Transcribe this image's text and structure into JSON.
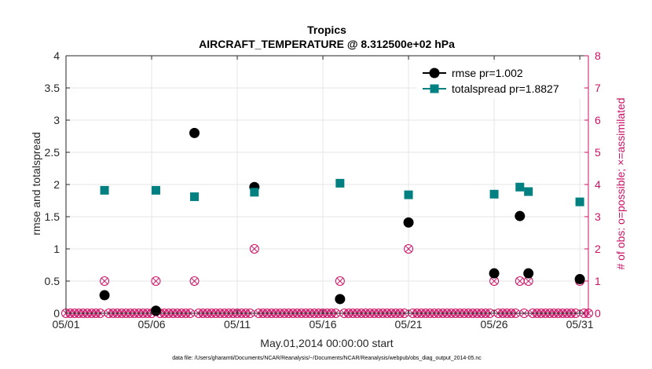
{
  "chart_data": {
    "type": "scatter",
    "title": "Tropics",
    "subtitle": "AIRCRAFT_TEMPERATURE @ 8.312500e+02 hPa",
    "xlabel": "May.01,2014 00:00:00 start",
    "ylabel": "rmse and totalspread",
    "ylabel_right": "# of obs: o=possible; ×=assimilated",
    "footer": "data file: /Users/gharamti/Documents/NCAR/Reanalysis/~/Documents/NCAR/Reanalysis/webpub/obs_diag_output_2014-05.nc",
    "xlim": [
      1,
      31.5
    ],
    "ylim": [
      0,
      4
    ],
    "ylim_right": [
      0,
      8
    ],
    "x_ticks": [
      1,
      6,
      11,
      16,
      21,
      26,
      31
    ],
    "x_tick_labels": [
      "05/01",
      "05/06",
      "05/11",
      "05/16",
      "05/21",
      "05/26",
      "05/31"
    ],
    "y_ticks": [
      0,
      0.5,
      1,
      1.5,
      2,
      2.5,
      3,
      3.5,
      4
    ],
    "y_tick_labels": [
      "0",
      "0.5",
      "1",
      "1.5",
      "2",
      "2.5",
      "3",
      "3.5",
      "4"
    ],
    "y_ticks_right": [
      0,
      1,
      2,
      3,
      4,
      5,
      6,
      7,
      8
    ],
    "y_tick_labels_right": [
      "0",
      "1",
      "2",
      "3",
      "4",
      "5",
      "6",
      "7",
      "8"
    ],
    "grid": true,
    "legend_position": "top-right",
    "colors": {
      "rmse": "#000000",
      "totalspread": "#008080",
      "obs": "#cc1166",
      "grid": "#e6e6e6",
      "axis": "#262626"
    },
    "series": [
      {
        "name": "rmse pr=1.002",
        "key": "rmse",
        "axis": "left",
        "x": [
          3.25,
          6.25,
          8.5,
          12.0,
          17.0,
          21.0,
          26.0,
          27.5,
          28.0,
          31.0
        ],
        "values": [
          0.28,
          0.04,
          2.8,
          1.96,
          0.22,
          1.41,
          0.62,
          1.51,
          0.62,
          0.53
        ]
      },
      {
        "name": "totalspread pr=1.8827",
        "key": "totalspread",
        "axis": "left",
        "x": [
          3.25,
          6.25,
          8.5,
          12.0,
          17.0,
          21.0,
          26.0,
          27.5,
          28.0,
          31.0
        ],
        "values": [
          1.91,
          1.91,
          1.81,
          1.88,
          2.02,
          1.84,
          1.85,
          1.96,
          1.89,
          1.73
        ]
      }
    ],
    "obs_counts": {
      "axis": "right",
      "x": [
        3.25,
        6.25,
        8.5,
        12.0,
        17.0,
        21.0,
        26.0,
        27.5,
        28.0,
        31.0
      ],
      "possible": [
        1,
        1,
        1,
        2,
        1,
        2,
        1,
        1,
        1,
        1
      ],
      "assimilated": [
        1,
        1,
        1,
        2,
        1,
        2,
        1,
        1,
        1,
        1
      ],
      "zero_step": 0.25
    }
  }
}
